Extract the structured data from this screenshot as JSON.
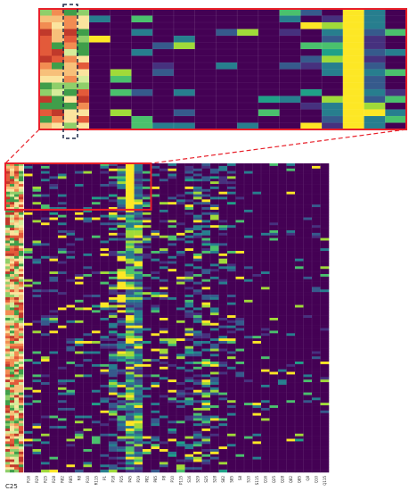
{
  "figure": {
    "corner_label": "C25"
  },
  "colors": {
    "frame": "#e8202a",
    "dashed_box": "#1f2a4a",
    "viridis": [
      "#440154",
      "#46317e",
      "#365a8c",
      "#277e8e",
      "#1fa187",
      "#4ac16d",
      "#a0da39",
      "#fde725"
    ],
    "annotation": [
      "#c0392b",
      "#e35a3a",
      "#f28c52",
      "#f7c07a",
      "#fbe49e",
      "#d6ec9a",
      "#8fcf6a",
      "#3f9e4a"
    ]
  },
  "chart_data": {
    "type": "heatmap",
    "title": "",
    "xlabel": "",
    "ylabel": "",
    "colormap": "viridis",
    "n_rows": 120,
    "x_tick_labels": [
      "R16",
      "R29",
      "R25",
      "R28",
      "R82",
      "R85",
      "R8",
      "R10",
      "R115",
      "P1",
      "P18",
      "P25",
      "P45",
      "P29",
      "P82",
      "P85",
      "P8",
      "P10",
      "P115",
      "S16",
      "S29",
      "S25",
      "S28",
      "S82",
      "S85",
      "S8",
      "S10",
      "S115",
      "Q16",
      "Q25",
      "Q28",
      "Q82",
      "Q85",
      "Q8",
      "Q10",
      "Q115"
    ],
    "annotation_columns": 4,
    "inset": {
      "description_label": "",
      "dashed_column_index": 2
    }
  }
}
